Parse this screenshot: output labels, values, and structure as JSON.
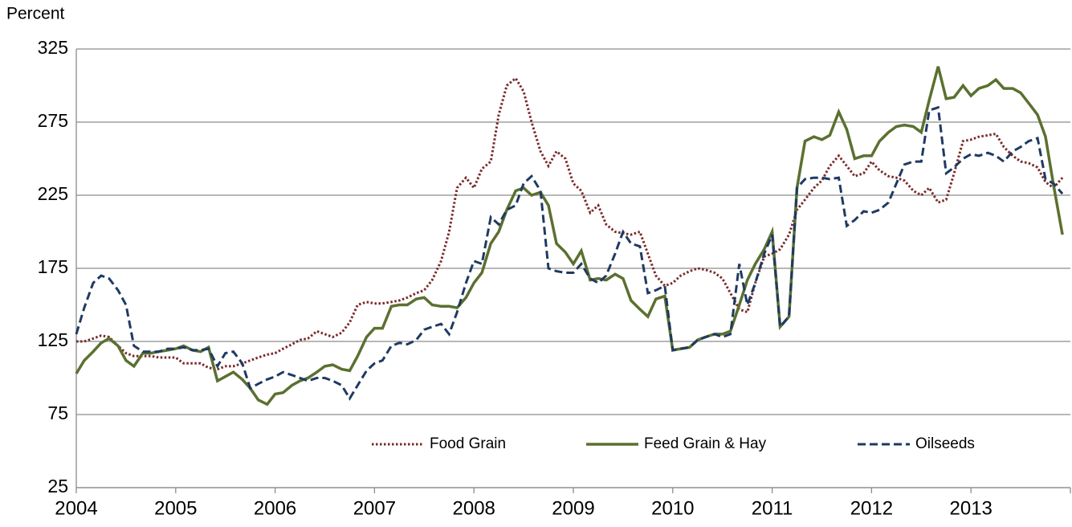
{
  "chart_data": {
    "type": "line",
    "y_label": "Percent",
    "x": [
      2004,
      2004.08,
      2004.17,
      2004.25,
      2004.33,
      2004.42,
      2004.5,
      2004.58,
      2004.67,
      2004.75,
      2004.83,
      2004.92,
      2005,
      2005.08,
      2005.17,
      2005.25,
      2005.33,
      2005.42,
      2005.5,
      2005.58,
      2005.67,
      2005.75,
      2005.83,
      2005.92,
      2006,
      2006.08,
      2006.17,
      2006.25,
      2006.33,
      2006.42,
      2006.5,
      2006.58,
      2006.67,
      2006.75,
      2006.83,
      2006.92,
      2007,
      2007.08,
      2007.17,
      2007.25,
      2007.33,
      2007.42,
      2007.5,
      2007.58,
      2007.67,
      2007.75,
      2007.83,
      2007.92,
      2008,
      2008.08,
      2008.17,
      2008.25,
      2008.33,
      2008.42,
      2008.5,
      2008.58,
      2008.67,
      2008.75,
      2008.83,
      2008.92,
      2009,
      2009.08,
      2009.17,
      2009.25,
      2009.33,
      2009.42,
      2009.5,
      2009.58,
      2009.67,
      2009.75,
      2009.83,
      2009.92,
      2010,
      2010.08,
      2010.17,
      2010.25,
      2010.33,
      2010.42,
      2010.5,
      2010.58,
      2010.67,
      2010.75,
      2010.83,
      2010.92,
      2011,
      2011.08,
      2011.17,
      2011.25,
      2011.33,
      2011.42,
      2011.5,
      2011.58,
      2011.67,
      2011.75,
      2011.83,
      2011.92,
      2012,
      2012.08,
      2012.17,
      2012.25,
      2012.33,
      2012.42,
      2012.5,
      2012.58,
      2012.67,
      2012.75,
      2012.83,
      2012.92,
      2013,
      2013.08,
      2013.17,
      2013.25,
      2013.33,
      2013.42,
      2013.5,
      2013.58,
      2013.67,
      2013.75,
      2013.83,
      2013.92
    ],
    "series": [
      {
        "name": "Food Grain",
        "color": "#7b2a2a",
        "dash": "dotted",
        "values": [
          125,
          125,
          127,
          129,
          128,
          122,
          117,
          115,
          115,
          115,
          114,
          114,
          114,
          110,
          110,
          110,
          107,
          106,
          108,
          108,
          110,
          112,
          114,
          116,
          117,
          120,
          123,
          126,
          127,
          132,
          130,
          128,
          131,
          138,
          150,
          152,
          151,
          151,
          152,
          153,
          155,
          158,
          160,
          167,
          180,
          200,
          230,
          237,
          230,
          243,
          248,
          280,
          300,
          305,
          296,
          275,
          255,
          245,
          255,
          250,
          233,
          228,
          213,
          218,
          205,
          200,
          199,
          198,
          200,
          185,
          170,
          163,
          165,
          170,
          173,
          175,
          174,
          172,
          168,
          158,
          147,
          145,
          165,
          183,
          185,
          188,
          198,
          215,
          222,
          230,
          235,
          245,
          252,
          245,
          238,
          240,
          248,
          242,
          238,
          237,
          235,
          228,
          225,
          230,
          220,
          222,
          240,
          262,
          263,
          265,
          266,
          267,
          258,
          252,
          248,
          247,
          244,
          234,
          230,
          237
        ]
      },
      {
        "name": "Feed Grain & Hay",
        "color": "#5b7030",
        "dash": "solid",
        "values": [
          103,
          112,
          118,
          124,
          127,
          122,
          112,
          108,
          117,
          117,
          118,
          119,
          120,
          122,
          119,
          118,
          121,
          98,
          101,
          104,
          99,
          93,
          85,
          82,
          89,
          90,
          95,
          98,
          100,
          104,
          108,
          109,
          106,
          105,
          115,
          128,
          134,
          134,
          149,
          150,
          150,
          154,
          155,
          150,
          149,
          149,
          148,
          155,
          165,
          172,
          192,
          200,
          215,
          228,
          230,
          225,
          227,
          218,
          192,
          186,
          178,
          187,
          167,
          168,
          167,
          171,
          168,
          153,
          147,
          142,
          154,
          156,
          119,
          120,
          121,
          126,
          128,
          130,
          130,
          132,
          150,
          167,
          178,
          188,
          200,
          135,
          142,
          230,
          262,
          265,
          263,
          266,
          282,
          270,
          250,
          252,
          252,
          262,
          268,
          272,
          273,
          272,
          268,
          290,
          313,
          291,
          292,
          300,
          293,
          298,
          300,
          304,
          298,
          298,
          295,
          288,
          280,
          265,
          232,
          198
        ]
      },
      {
        "name": "Oilseeds",
        "color": "#1f3a62",
        "dash": "dashed",
        "values": [
          130,
          148,
          165,
          170,
          168,
          160,
          150,
          122,
          118,
          118,
          118,
          120,
          120,
          121,
          119,
          119,
          120,
          108,
          117,
          118,
          110,
          93,
          96,
          99,
          101,
          104,
          102,
          100,
          98,
          100,
          100,
          98,
          95,
          86,
          95,
          105,
          110,
          112,
          122,
          124,
          123,
          126,
          133,
          135,
          137,
          130,
          145,
          165,
          180,
          178,
          210,
          205,
          215,
          218,
          233,
          238,
          228,
          175,
          173,
          172,
          172,
          178,
          168,
          165,
          170,
          185,
          200,
          192,
          190,
          158,
          160,
          163,
          119,
          120,
          121,
          126,
          128,
          130,
          128,
          130,
          178,
          150,
          165,
          185,
          198,
          135,
          142,
          230,
          236,
          237,
          237,
          236,
          237,
          204,
          208,
          214,
          213,
          215,
          220,
          233,
          246,
          248,
          248,
          283,
          285,
          240,
          244,
          250,
          253,
          252,
          254,
          252,
          248,
          255,
          258,
          262,
          264,
          236,
          233,
          226
        ]
      }
    ],
    "xlim": [
      2004,
      2014
    ],
    "xticks": [
      2004,
      2005,
      2006,
      2007,
      2008,
      2009,
      2010,
      2011,
      2012,
      2013
    ],
    "ylim": [
      25,
      325
    ],
    "yticks": [
      25,
      75,
      125,
      175,
      225,
      275,
      325
    ],
    "grid": true,
    "legend": "bottom"
  }
}
